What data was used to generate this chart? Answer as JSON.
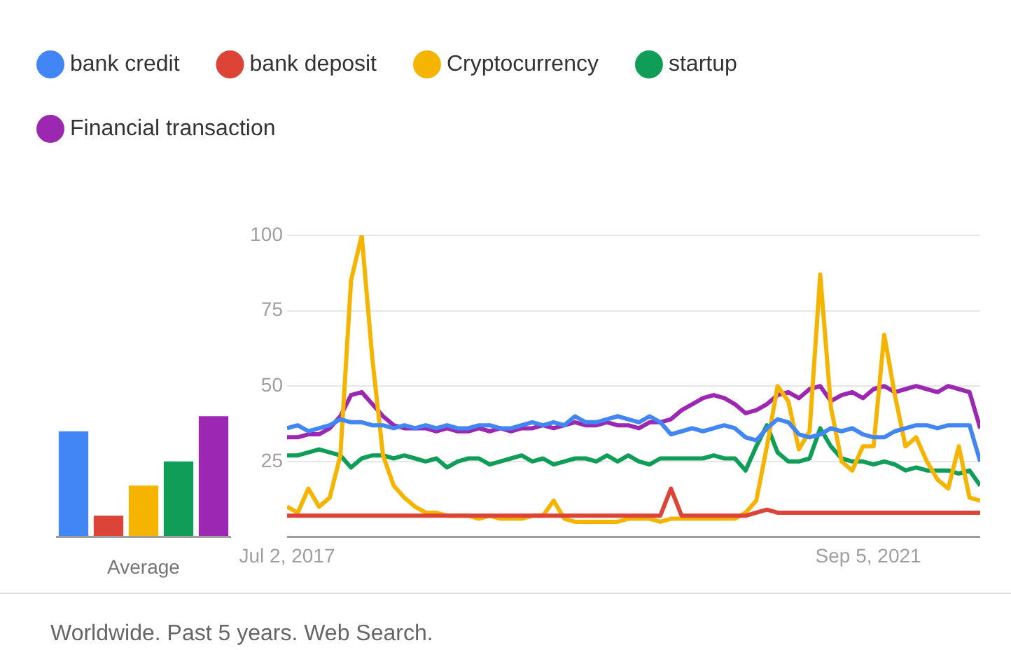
{
  "chart_data": [
    {
      "type": "bar",
      "categories": [
        null,
        null,
        null,
        null,
        null
      ],
      "xlabel": "Average",
      "ylim": [
        0,
        100
      ],
      "tick_labels": false,
      "legend": false,
      "values": [
        35,
        7,
        17,
        25,
        40
      ],
      "colors": [
        "#4285f4",
        "#db4437",
        "#f4b400",
        "#0f9d58",
        "#9c27b0"
      ]
    },
    {
      "type": "line",
      "legend": "top left",
      "grid": "y",
      "xlim": [
        "2017-07-02",
        "2022-06-26"
      ],
      "xticks": [
        {
          "value": "2017-07-02",
          "label": "Jul 2, 2017"
        },
        {
          "value": "2021-09-05",
          "label": "Sep 5, 2021"
        }
      ],
      "ylim": [
        0,
        100
      ],
      "yticks": [
        25,
        50,
        75,
        100
      ],
      "annotations": [
        "Worldwide. Past 5 years. Web Search."
      ],
      "x": [
        "2017-07-02",
        "2017-07-30",
        "2017-08-27",
        "2017-09-24",
        "2017-10-22",
        "2017-11-19",
        "2017-12-17",
        "2018-01-14",
        "2018-02-11",
        "2018-03-11",
        "2018-04-08",
        "2018-05-06",
        "2018-06-03",
        "2018-07-01",
        "2018-07-29",
        "2018-08-26",
        "2018-09-23",
        "2018-10-21",
        "2018-11-18",
        "2018-12-16",
        "2019-01-13",
        "2019-02-10",
        "2019-03-10",
        "2019-04-07",
        "2019-05-05",
        "2019-06-02",
        "2019-06-30",
        "2019-07-28",
        "2019-08-25",
        "2019-09-22",
        "2019-10-20",
        "2019-11-17",
        "2019-12-15",
        "2020-01-12",
        "2020-02-09",
        "2020-03-08",
        "2020-04-05",
        "2020-05-03",
        "2020-05-31",
        "2020-06-28",
        "2020-07-26",
        "2020-08-23",
        "2020-09-20",
        "2020-10-18",
        "2020-11-15",
        "2020-12-13",
        "2021-01-10",
        "2021-02-07",
        "2021-03-07",
        "2021-04-04",
        "2021-05-02",
        "2021-05-30",
        "2021-06-27",
        "2021-07-25",
        "2021-08-22",
        "2021-09-19",
        "2021-10-17",
        "2021-11-14",
        "2021-12-12",
        "2022-01-09",
        "2022-02-06",
        "2022-03-06",
        "2022-04-03",
        "2022-05-01",
        "2022-05-29",
        "2022-06-26"
      ],
      "series": [
        {
          "name": "bank credit",
          "color": "#4285f4",
          "values": [
            36,
            37,
            35,
            36,
            37,
            39,
            38,
            38,
            37,
            37,
            36,
            37,
            36,
            37,
            36,
            37,
            36,
            36,
            37,
            37,
            36,
            36,
            37,
            38,
            37,
            38,
            37,
            40,
            38,
            38,
            39,
            40,
            39,
            38,
            40,
            38,
            34,
            35,
            36,
            35,
            36,
            37,
            36,
            33,
            32,
            36,
            39,
            38,
            34,
            33,
            34,
            36,
            35,
            36,
            34,
            33,
            33,
            35,
            36,
            37,
            37,
            36,
            37,
            37,
            37,
            25
          ]
        },
        {
          "name": "bank deposit",
          "color": "#db4437",
          "values": [
            7,
            7,
            7,
            7,
            7,
            7,
            7,
            7,
            7,
            7,
            7,
            7,
            7,
            7,
            7,
            7,
            7,
            7,
            7,
            7,
            7,
            7,
            7,
            7,
            7,
            7,
            7,
            7,
            7,
            7,
            7,
            7,
            7,
            7,
            7,
            7,
            16,
            7,
            7,
            7,
            7,
            7,
            7,
            7,
            8,
            9,
            8,
            8,
            8,
            8,
            8,
            8,
            8,
            8,
            8,
            8,
            8,
            8,
            8,
            8,
            8,
            8,
            8,
            8,
            8,
            8
          ]
        },
        {
          "name": "Cryptocurrency",
          "color": "#f4b400",
          "values": [
            10,
            8,
            16,
            10,
            13,
            27,
            85,
            100,
            59,
            27,
            17,
            13,
            10,
            8,
            8,
            7,
            7,
            7,
            6,
            7,
            6,
            6,
            6,
            7,
            7,
            12,
            6,
            5,
            5,
            5,
            5,
            5,
            6,
            6,
            6,
            5,
            6,
            6,
            6,
            6,
            6,
            6,
            6,
            8,
            12,
            30,
            50,
            45,
            29,
            35,
            87,
            43,
            25,
            22,
            30,
            30,
            67,
            47,
            30,
            33,
            25,
            19,
            16,
            30,
            13,
            12
          ]
        },
        {
          "name": "startup",
          "color": "#0f9d58",
          "values": [
            27,
            27,
            28,
            29,
            28,
            27,
            23,
            26,
            27,
            27,
            26,
            27,
            26,
            25,
            26,
            23,
            25,
            26,
            26,
            24,
            25,
            26,
            27,
            25,
            26,
            24,
            25,
            26,
            26,
            25,
            27,
            25,
            27,
            25,
            24,
            26,
            26,
            26,
            26,
            26,
            27,
            26,
            26,
            22,
            30,
            37,
            28,
            25,
            25,
            26,
            36,
            30,
            26,
            25,
            25,
            24,
            25,
            24,
            22,
            23,
            22,
            22,
            22,
            21,
            22,
            17
          ]
        },
        {
          "name": "Financial transaction",
          "color": "#9c27b0",
          "values": [
            33,
            33,
            34,
            34,
            36,
            40,
            47,
            48,
            44,
            40,
            37,
            36,
            36,
            36,
            35,
            36,
            35,
            35,
            36,
            35,
            36,
            35,
            36,
            36,
            37,
            36,
            37,
            38,
            37,
            37,
            38,
            37,
            37,
            36,
            38,
            38,
            39,
            42,
            44,
            46,
            47,
            46,
            44,
            41,
            42,
            44,
            47,
            48,
            46,
            49,
            50,
            45,
            47,
            48,
            46,
            49,
            50,
            48,
            49,
            50,
            49,
            48,
            50,
            49,
            48,
            36
          ]
        }
      ]
    }
  ]
}
